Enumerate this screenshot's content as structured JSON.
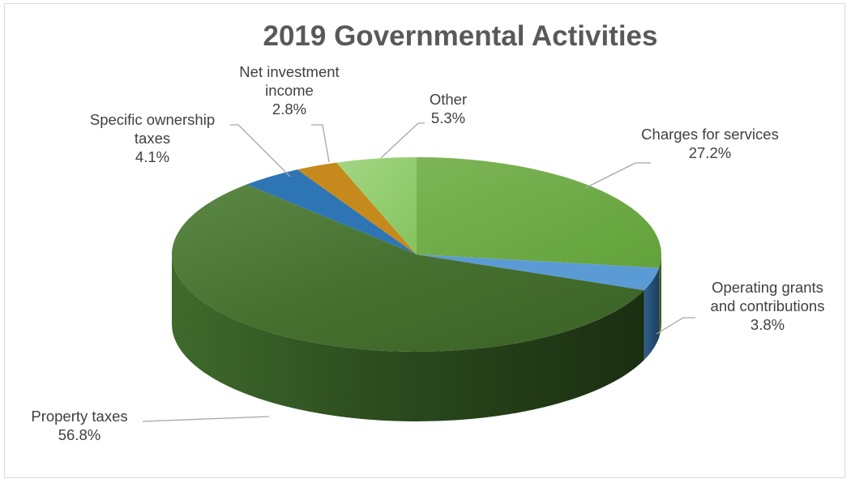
{
  "chart_data": {
    "type": "pie",
    "title": "2019 Governmental Activities",
    "style": "3d",
    "start_angle_deg": -90,
    "direction": "clockwise",
    "legend": "none",
    "data_labels": "outside with leader lines",
    "slices": [
      {
        "name_lines": [
          "Charges for services"
        ],
        "value": 27.2,
        "label": "27.2%",
        "color": "#70ad47"
      },
      {
        "name_lines": [
          "Operating grants",
          "and contributions"
        ],
        "value": 3.8,
        "label": "3.8%",
        "color": "#5b9bd5"
      },
      {
        "name_lines": [
          "Property taxes"
        ],
        "value": 56.8,
        "label": "56.8%",
        "color": "#4a7a35"
      },
      {
        "name_lines": [
          "Specific ownership",
          "taxes"
        ],
        "value": 4.1,
        "label": "4.1%",
        "color": "#2e75b6"
      },
      {
        "name_lines": [
          "Net investment",
          "income"
        ],
        "value": 2.8,
        "label": "2.8%",
        "color": "#c68a1c"
      },
      {
        "name_lines": [
          "Other"
        ],
        "value": 5.3,
        "label": "5.3%",
        "color": "#8fcf6a"
      }
    ]
  }
}
